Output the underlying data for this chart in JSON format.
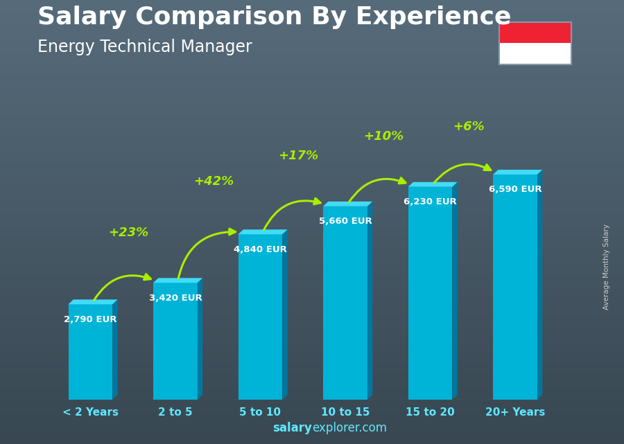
{
  "title": "Salary Comparison By Experience",
  "subtitle": "Energy Technical Manager",
  "categories": [
    "< 2 Years",
    "2 to 5",
    "5 to 10",
    "10 to 15",
    "15 to 20",
    "20+ Years"
  ],
  "values": [
    2790,
    3420,
    4840,
    5660,
    6230,
    6590
  ],
  "value_labels": [
    "2,790 EUR",
    "3,420 EUR",
    "4,840 EUR",
    "5,660 EUR",
    "6,230 EUR",
    "6,590 EUR"
  ],
  "pct_changes": [
    "+23%",
    "+42%",
    "+17%",
    "+10%",
    "+6%"
  ],
  "bar_color_main": "#00b4d8",
  "bar_color_light": "#00cfee",
  "bar_color_dark": "#0077a0",
  "bar_color_top": "#40dcf8",
  "bg_top": "#4a5e6e",
  "bg_bottom": "#1a2535",
  "text_color_white": "#ffffff",
  "text_color_green": "#aaee00",
  "title_fontsize": 26,
  "subtitle_fontsize": 17,
  "ylabel_text": "Average Monthly Salary",
  "footer_bold": "salary",
  "footer_normal": "explorer.com",
  "flag_red": "#ee2233",
  "flag_white": "#ffffff",
  "ylim_max": 7800,
  "bar_width": 0.52
}
